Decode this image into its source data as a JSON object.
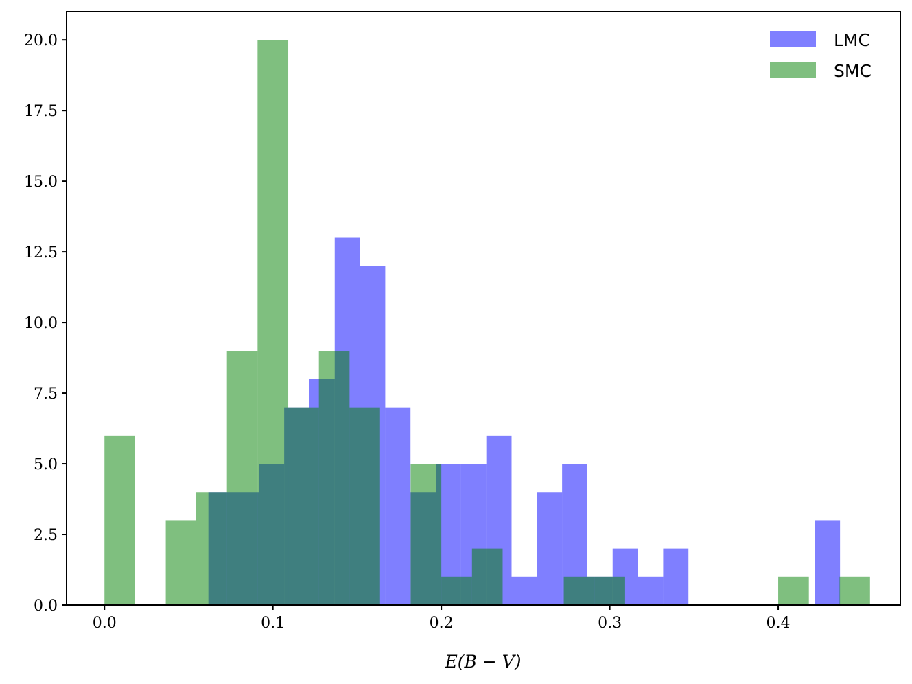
{
  "chart_data": {
    "type": "bar",
    "title": "",
    "xlabel": "E(B − V)",
    "ylabel": "",
    "xlim": [
      -0.0225,
      0.4725
    ],
    "ylim": [
      0,
      21
    ],
    "grid": false,
    "legend_position": "top-right",
    "x_ticks": [
      0.0,
      0.1,
      0.2,
      0.3,
      0.4
    ],
    "x_tick_labels": [
      "0.0",
      "0.1",
      "0.2",
      "0.3",
      "0.4"
    ],
    "y_ticks": [
      0.0,
      2.5,
      5.0,
      7.5,
      10.0,
      12.5,
      15.0,
      17.5,
      20.0
    ],
    "y_tick_labels": [
      "0.0",
      "2.5",
      "5.0",
      "7.5",
      "10.0",
      "12.5",
      "15.0",
      "17.5",
      "20.0"
    ],
    "series": [
      {
        "name": "LMC",
        "color": "#0000ff",
        "opacity": 0.5,
        "bin_edges": [
          0.0617,
          0.0767,
          0.0917,
          0.1067,
          0.1217,
          0.1367,
          0.1517,
          0.1667,
          0.1817,
          0.1967,
          0.2117,
          0.2267,
          0.2417,
          0.2567,
          0.2717,
          0.2867,
          0.3017,
          0.3167,
          0.3317,
          0.3467,
          0.3617,
          0.3767,
          0.3917,
          0.4067,
          0.4217,
          0.4367
        ],
        "counts": [
          4,
          4,
          5,
          7,
          8,
          13,
          12,
          7,
          4,
          5,
          5,
          6,
          1,
          4,
          5,
          1,
          2,
          1,
          2,
          0,
          0,
          0,
          0,
          0,
          3
        ]
      },
      {
        "name": "SMC",
        "color": "#008000",
        "opacity": 0.5,
        "bin_edges": [
          0.0,
          0.0182,
          0.0364,
          0.0545,
          0.0727,
          0.0909,
          0.1091,
          0.1273,
          0.1455,
          0.1636,
          0.1818,
          0.2,
          0.2182,
          0.2364,
          0.2545,
          0.2727,
          0.2909,
          0.3091,
          0.3273,
          0.3455,
          0.3636,
          0.3818,
          0.4,
          0.4182,
          0.4364,
          0.4545
        ],
        "counts": [
          6,
          0,
          3,
          4,
          9,
          20,
          7,
          9,
          7,
          0,
          5,
          1,
          2,
          0,
          0,
          1,
          1,
          0,
          0,
          0,
          0,
          0,
          1,
          0,
          1
        ]
      }
    ]
  }
}
